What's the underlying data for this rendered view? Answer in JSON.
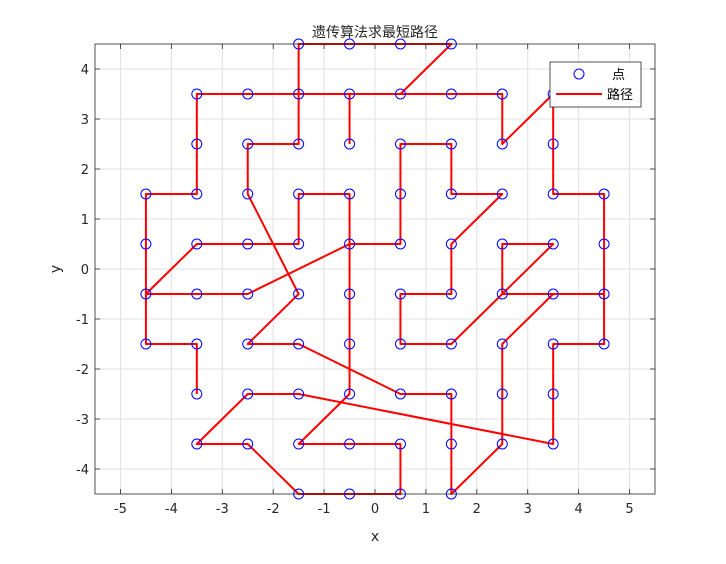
{
  "chart_data": {
    "type": "scatter",
    "title": "遗传算法求最短路径",
    "xlabel": "x",
    "ylabel": "y",
    "xlim": [
      -5.5,
      5.5
    ],
    "ylim": [
      -4.5,
      4.5
    ],
    "xticks": [
      -5,
      -4,
      -3,
      -2,
      -1,
      0,
      1,
      2,
      3,
      4,
      5
    ],
    "yticks": [
      -4,
      -3,
      -2,
      -1,
      0,
      1,
      2,
      3,
      4
    ],
    "xtick_labels": [
      "-5",
      "-4",
      "-3",
      "-2",
      "-1",
      "0",
      "1",
      "2",
      "3",
      "4",
      "5"
    ],
    "ytick_labels": [
      "-4",
      "-3",
      "-2",
      "-1",
      "0",
      "1",
      "2",
      "3",
      "4"
    ],
    "grid": true,
    "legend_position": "top-right",
    "series": [
      {
        "name": "点",
        "style": "markers",
        "color": "#0000ff",
        "points": [
          [
            -1.5,
            4.5
          ],
          [
            -0.5,
            4.5
          ],
          [
            0.5,
            4.5
          ],
          [
            1.5,
            4.5
          ],
          [
            -3.5,
            3.5
          ],
          [
            -2.5,
            3.5
          ],
          [
            -1.5,
            3.5
          ],
          [
            -0.5,
            3.5
          ],
          [
            0.5,
            3.5
          ],
          [
            1.5,
            3.5
          ],
          [
            2.5,
            3.5
          ],
          [
            3.5,
            3.5
          ],
          [
            -3.5,
            2.5
          ],
          [
            -2.5,
            2.5
          ],
          [
            -1.5,
            2.5
          ],
          [
            -0.5,
            2.5
          ],
          [
            0.5,
            2.5
          ],
          [
            1.5,
            2.5
          ],
          [
            2.5,
            2.5
          ],
          [
            3.5,
            2.5
          ],
          [
            -4.5,
            1.5
          ],
          [
            -3.5,
            1.5
          ],
          [
            -2.5,
            1.5
          ],
          [
            -1.5,
            1.5
          ],
          [
            -0.5,
            1.5
          ],
          [
            0.5,
            1.5
          ],
          [
            1.5,
            1.5
          ],
          [
            2.5,
            1.5
          ],
          [
            3.5,
            1.5
          ],
          [
            4.5,
            1.5
          ],
          [
            -4.5,
            0.5
          ],
          [
            -3.5,
            0.5
          ],
          [
            -2.5,
            0.5
          ],
          [
            -1.5,
            0.5
          ],
          [
            -0.5,
            0.5
          ],
          [
            0.5,
            0.5
          ],
          [
            1.5,
            0.5
          ],
          [
            2.5,
            0.5
          ],
          [
            3.5,
            0.5
          ],
          [
            4.5,
            0.5
          ],
          [
            -4.5,
            -0.5
          ],
          [
            -3.5,
            -0.5
          ],
          [
            -2.5,
            -0.5
          ],
          [
            -1.5,
            -0.5
          ],
          [
            -0.5,
            -0.5
          ],
          [
            0.5,
            -0.5
          ],
          [
            1.5,
            -0.5
          ],
          [
            2.5,
            -0.5
          ],
          [
            3.5,
            -0.5
          ],
          [
            4.5,
            -0.5
          ],
          [
            -4.5,
            -1.5
          ],
          [
            -3.5,
            -1.5
          ],
          [
            -2.5,
            -1.5
          ],
          [
            -1.5,
            -1.5
          ],
          [
            -0.5,
            -1.5
          ],
          [
            0.5,
            -1.5
          ],
          [
            1.5,
            -1.5
          ],
          [
            2.5,
            -1.5
          ],
          [
            3.5,
            -1.5
          ],
          [
            4.5,
            -1.5
          ],
          [
            -3.5,
            -2.5
          ],
          [
            -2.5,
            -2.5
          ],
          [
            -1.5,
            -2.5
          ],
          [
            -0.5,
            -2.5
          ],
          [
            0.5,
            -2.5
          ],
          [
            1.5,
            -2.5
          ],
          [
            2.5,
            -2.5
          ],
          [
            3.5,
            -2.5
          ],
          [
            -3.5,
            -3.5
          ],
          [
            -2.5,
            -3.5
          ],
          [
            -1.5,
            -3.5
          ],
          [
            -0.5,
            -3.5
          ],
          [
            0.5,
            -3.5
          ],
          [
            1.5,
            -3.5
          ],
          [
            2.5,
            -3.5
          ],
          [
            3.5,
            -3.5
          ],
          [
            -1.5,
            -4.5
          ],
          [
            -0.5,
            -4.5
          ],
          [
            0.5,
            -4.5
          ],
          [
            1.5,
            -4.5
          ]
        ]
      },
      {
        "name": "路径",
        "style": "line",
        "color": "#ff0000",
        "path": [
          [
            -0.5,
            2.5
          ],
          [
            -0.5,
            3.5
          ],
          [
            0.5,
            3.5
          ],
          [
            1.5,
            4.5
          ],
          [
            0.5,
            4.5
          ],
          [
            -0.5,
            4.5
          ],
          [
            -1.5,
            4.5
          ],
          [
            -1.5,
            3.5
          ],
          [
            -1.5,
            2.5
          ],
          [
            -2.5,
            2.5
          ],
          [
            -2.5,
            1.5
          ],
          [
            -1.5,
            -0.5
          ],
          [
            -2.5,
            -1.5
          ],
          [
            -1.5,
            -1.5
          ],
          [
            0.5,
            -2.5
          ],
          [
            1.5,
            -2.5
          ],
          [
            1.5,
            -3.5
          ],
          [
            1.5,
            -4.5
          ],
          [
            2.5,
            -3.5
          ],
          [
            2.5,
            -2.5
          ],
          [
            2.5,
            -1.5
          ],
          [
            3.5,
            -0.5
          ],
          [
            4.5,
            -0.5
          ],
          [
            4.5,
            -1.5
          ],
          [
            3.5,
            -1.5
          ],
          [
            3.5,
            -2.5
          ],
          [
            3.5,
            -3.5
          ],
          [
            -1.5,
            -2.5
          ],
          [
            -2.5,
            -2.5
          ],
          [
            -3.5,
            -3.5
          ],
          [
            -2.5,
            -3.5
          ],
          [
            -1.5,
            -4.5
          ],
          [
            -0.5,
            -4.5
          ],
          [
            0.5,
            -4.5
          ],
          [
            0.5,
            -3.5
          ],
          [
            -0.5,
            -3.5
          ],
          [
            -1.5,
            -3.5
          ],
          [
            -0.5,
            -2.5
          ],
          [
            -0.5,
            -1.5
          ],
          [
            -0.5,
            -0.5
          ],
          [
            -0.5,
            0.5
          ],
          [
            -0.5,
            1.5
          ],
          [
            -1.5,
            1.5
          ],
          [
            -1.5,
            0.5
          ],
          [
            -2.5,
            0.5
          ],
          [
            -3.5,
            0.5
          ],
          [
            -4.5,
            -0.5
          ],
          [
            -3.5,
            -0.5
          ],
          [
            -2.5,
            -0.5
          ],
          [
            -0.5,
            0.5
          ],
          [
            0.5,
            0.5
          ],
          [
            0.5,
            1.5
          ],
          [
            0.5,
            2.5
          ],
          [
            1.5,
            2.5
          ],
          [
            1.5,
            1.5
          ],
          [
            2.5,
            1.5
          ],
          [
            1.5,
            0.5
          ],
          [
            1.5,
            -0.5
          ],
          [
            0.5,
            -0.5
          ],
          [
            0.5,
            -1.5
          ],
          [
            1.5,
            -1.5
          ],
          [
            2.5,
            -0.5
          ],
          [
            3.5,
            0.5
          ],
          [
            2.5,
            0.5
          ],
          [
            2.5,
            -0.5
          ],
          [
            3.5,
            -0.5
          ],
          [
            4.5,
            -0.5
          ],
          [
            4.5,
            0.5
          ],
          [
            4.5,
            1.5
          ],
          [
            3.5,
            1.5
          ],
          [
            3.5,
            2.5
          ],
          [
            3.5,
            3.5
          ],
          [
            2.5,
            2.5
          ],
          [
            2.5,
            3.5
          ],
          [
            1.5,
            3.5
          ],
          [
            0.5,
            3.5
          ],
          [
            -0.5,
            3.5
          ],
          [
            -1.5,
            3.5
          ],
          [
            -2.5,
            3.5
          ],
          [
            -3.5,
            3.5
          ],
          [
            -3.5,
            2.5
          ],
          [
            -3.5,
            1.5
          ],
          [
            -4.5,
            1.5
          ],
          [
            -4.5,
            0.5
          ],
          [
            -4.5,
            -0.5
          ],
          [
            -4.5,
            -1.5
          ],
          [
            -3.5,
            -1.5
          ],
          [
            -3.5,
            -2.5
          ]
        ]
      }
    ]
  }
}
